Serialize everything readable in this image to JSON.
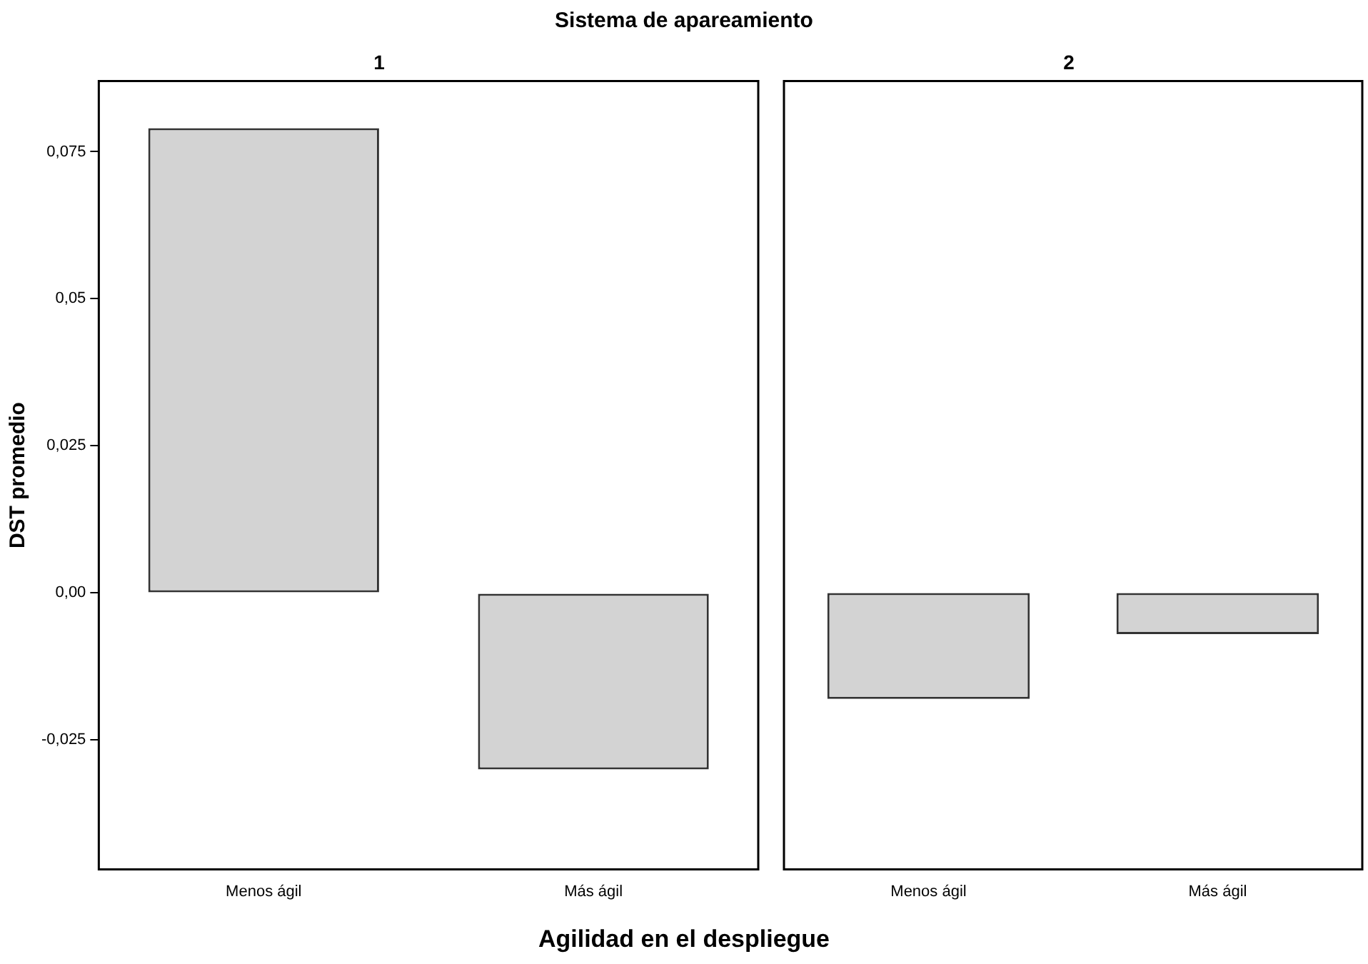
{
  "chart_data": [
    {
      "type": "bar",
      "title": "Sistema de apareamiento",
      "subtitle": "1",
      "xlabel": "Agilidad en el despliegue",
      "ylabel": "DST promedio",
      "categories": [
        "Menos ágil",
        "Más ágil"
      ],
      "values": [
        0.079,
        -0.03
      ],
      "color": "#d3d3d3",
      "ylim": [
        -0.047,
        0.087
      ],
      "yticks": [
        {
          "value": -0.025,
          "label": "-0,025"
        },
        {
          "value": 0,
          "label": "0,00"
        },
        {
          "value": 0.025,
          "label": "0,025"
        },
        {
          "value": 0.05,
          "label": "0,05"
        },
        {
          "value": 0.075,
          "label": "0,075"
        }
      ]
    },
    {
      "type": "bar",
      "subtitle": "2",
      "categories": [
        "Menos ágil",
        "Más ágil"
      ],
      "values": [
        -0.018,
        -0.007
      ],
      "color": "#d3d3d3",
      "ylim": [
        -0.047,
        0.087
      ],
      "tick_labels": "x"
    }
  ]
}
